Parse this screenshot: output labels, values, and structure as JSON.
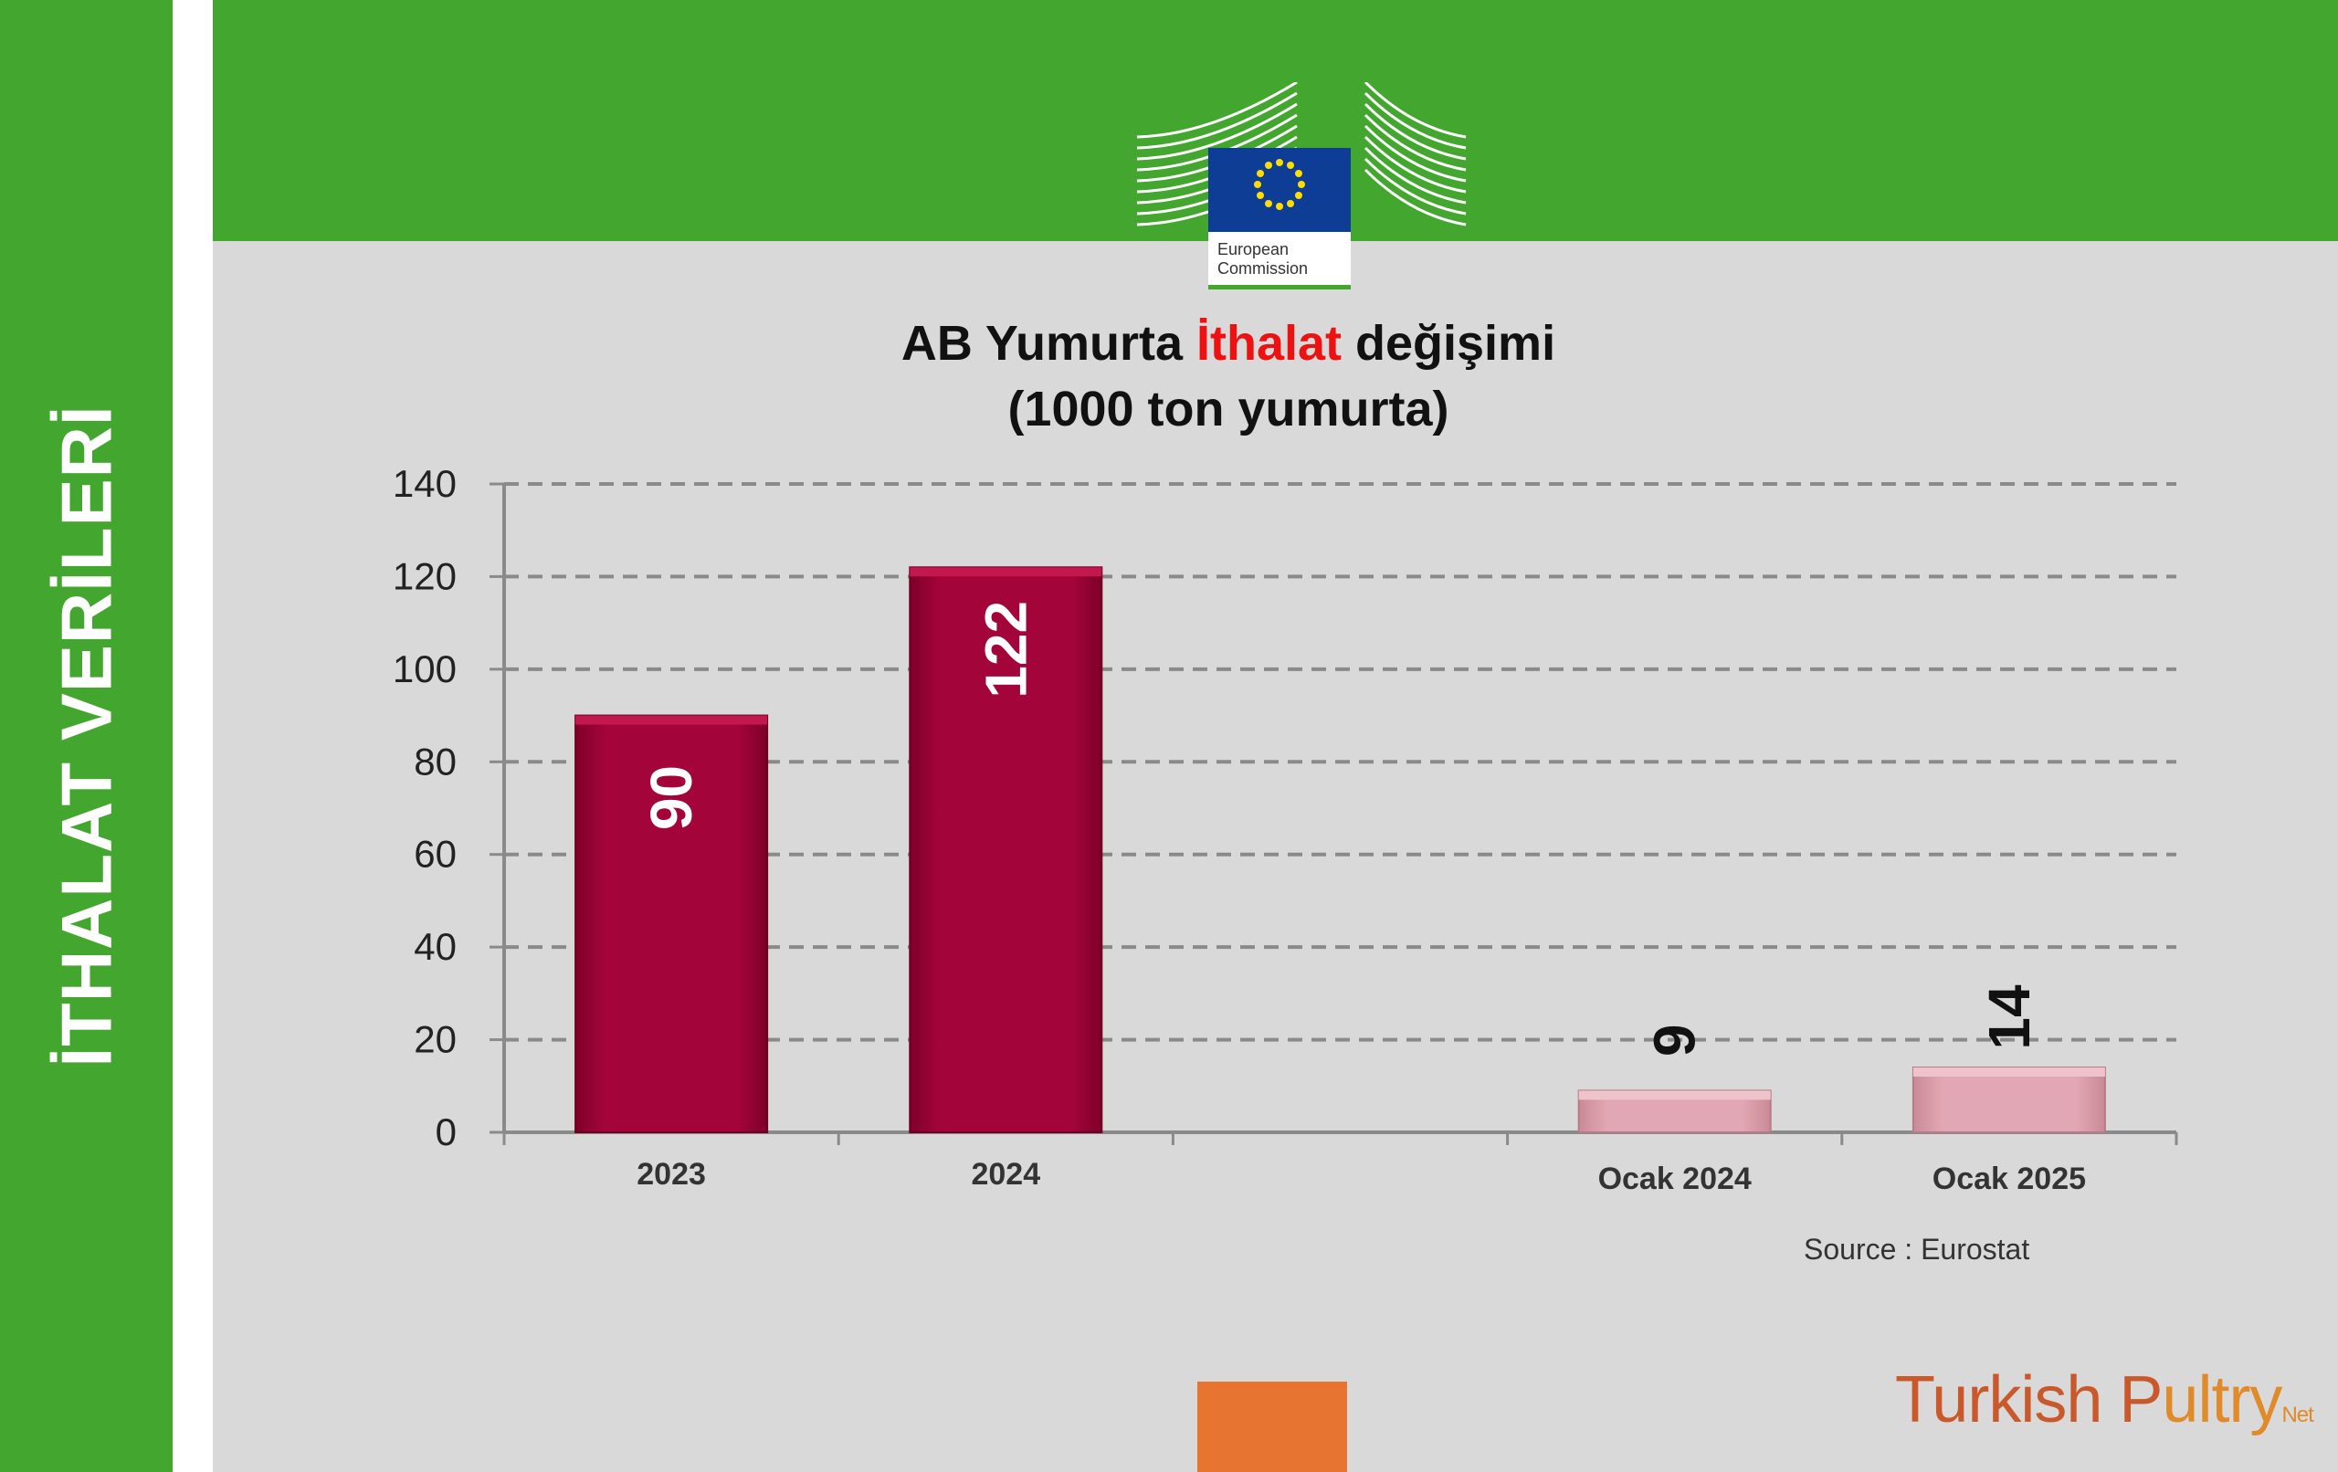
{
  "side_title": "İTHALAT VERİLERİ",
  "logo": {
    "line1": "European",
    "line2": "Commission"
  },
  "title": {
    "pre": "AB Yumurta ",
    "highlight": "İthalat",
    "post": " değişimi",
    "line2": "(1000 ton yumurta)"
  },
  "source": "Source : Eurostat",
  "watermark": {
    "part1": "Turkish P",
    "part2": "ultry",
    "net": "Net"
  },
  "colors": {
    "green": "#43a62e",
    "bar_dark": "#a3043a",
    "bar_light": "#e2a7b4",
    "title_highlight": "#ee1111",
    "orange": "#e87431"
  },
  "chart_data": {
    "type": "bar",
    "title": "AB Yumurta İthalat değişimi (1000 ton yumurta)",
    "categories": [
      "2023",
      "2024",
      "",
      "Ocak 2024",
      "Ocak 2025"
    ],
    "values": [
      90,
      122,
      null,
      9,
      14
    ],
    "data_labels": [
      "90",
      "122",
      "",
      "9",
      "14"
    ],
    "ylim": [
      0,
      140
    ],
    "yticks": [
      "0",
      "20",
      "40",
      "60",
      "80",
      "100",
      "120",
      "140"
    ],
    "xlabel": "",
    "ylabel": "",
    "grid": true
  }
}
